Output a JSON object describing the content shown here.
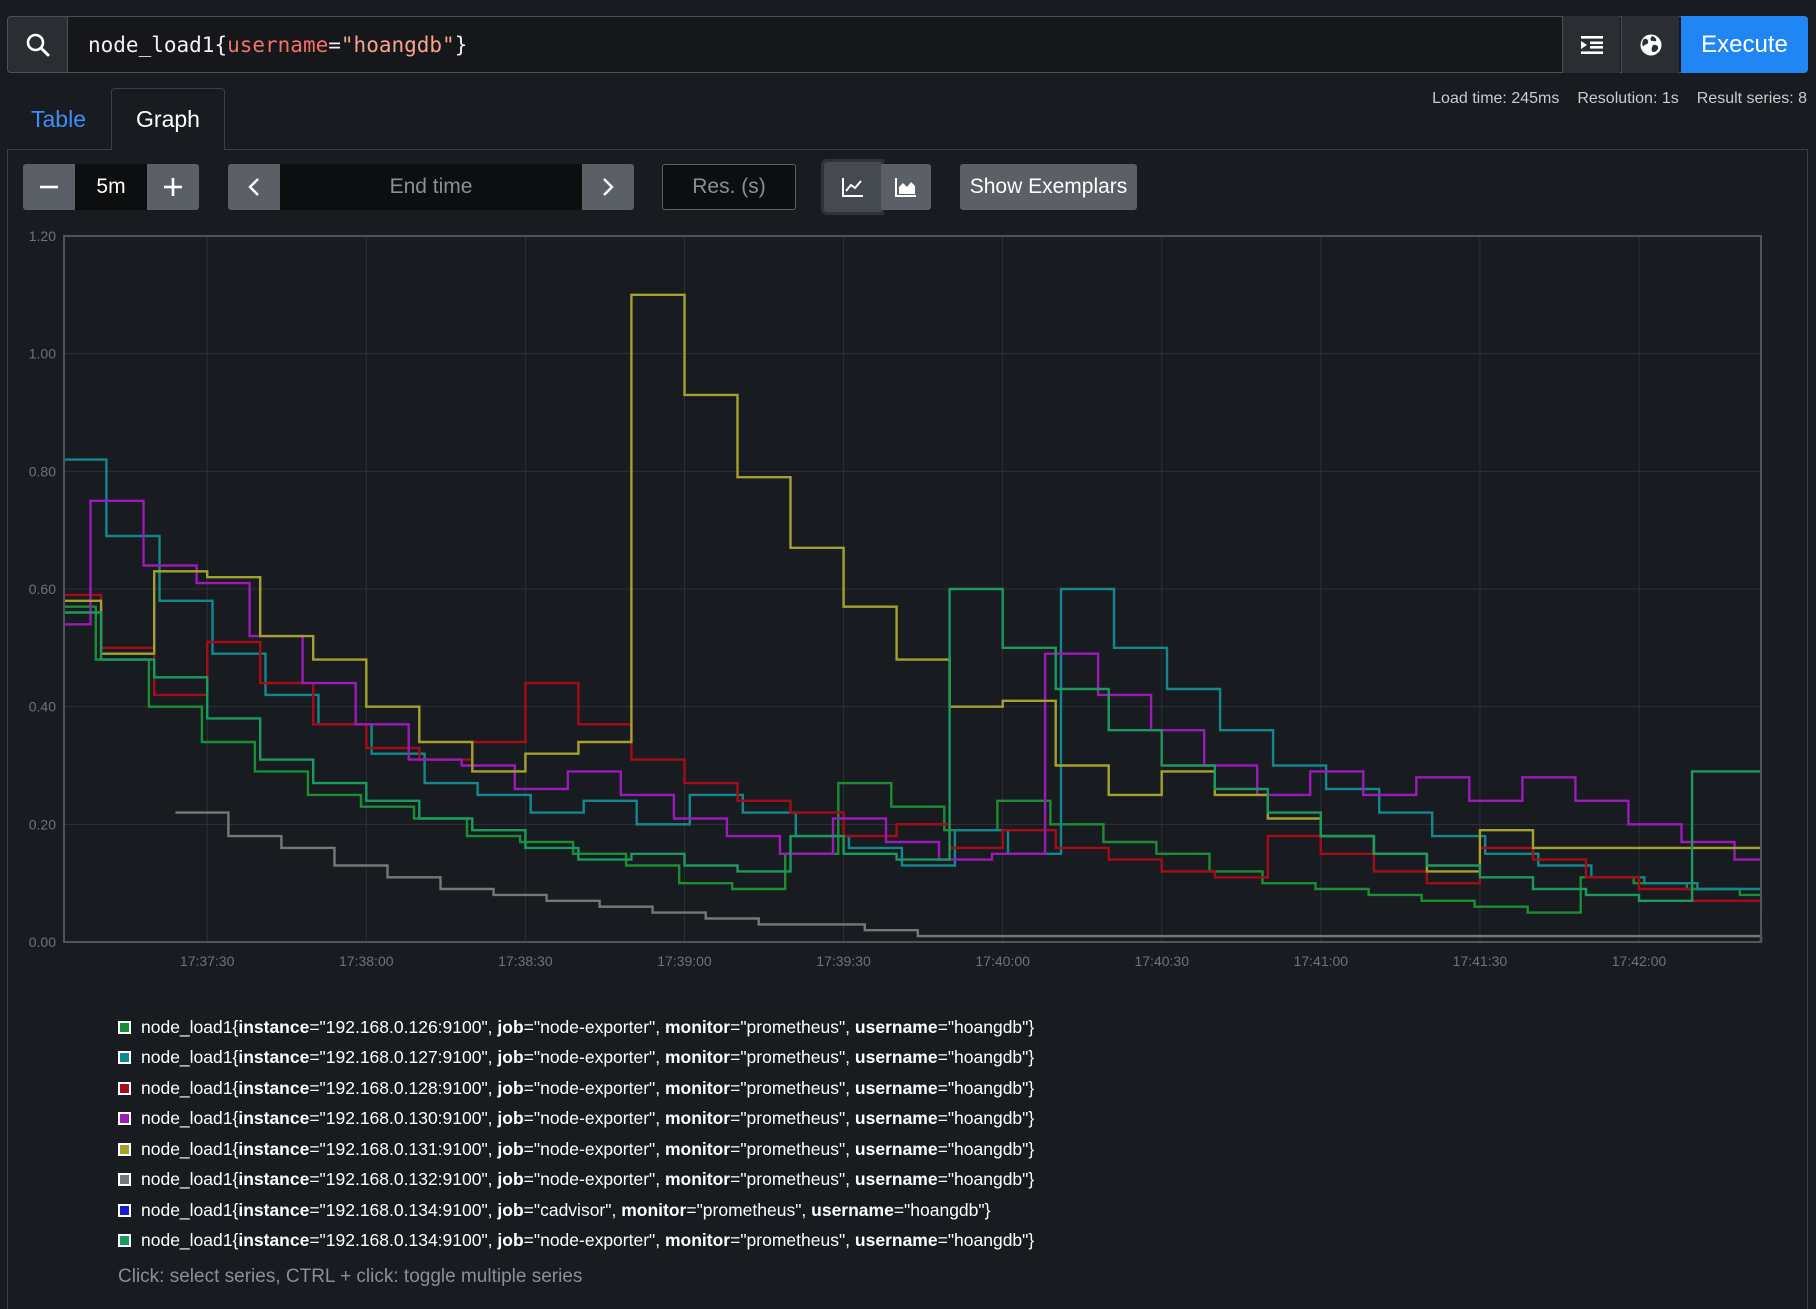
{
  "query": {
    "metric": "node_load1",
    "open_brace": "{",
    "label_key": "username",
    "equals": "=",
    "label_value": "\"hoangdb\"",
    "close_brace": "}",
    "execute_label": "Execute"
  },
  "tabs": {
    "table": "Table",
    "graph": "Graph"
  },
  "stats": {
    "load_time": "Load time: 245ms",
    "resolution": "Resolution: 1s",
    "result_series": "Result series: 8"
  },
  "toolbar": {
    "range_value": "5m",
    "end_time_placeholder": "End time",
    "res_placeholder": "Res. (s)",
    "exemplars_label": "Show Exemplars"
  },
  "icons": {
    "search": "search-icon",
    "format": "format-indent-icon",
    "explorer": "globe-icon",
    "minus": "minus-icon",
    "plus": "plus-icon",
    "prev": "chevron-left-icon",
    "next": "chevron-right-icon",
    "line": "line-chart-icon",
    "stacked": "area-chart-icon"
  },
  "colors": {
    "accent": "#1f86f4",
    "background": "#181b1f"
  },
  "chart_data": {
    "type": "line",
    "ylim": [
      0,
      1.2
    ],
    "yticks": [
      "0.00",
      "0.20",
      "0.40",
      "0.60",
      "0.80",
      "1.00",
      "1.20"
    ],
    "xlim": [
      "17:37:03",
      "17:42:23"
    ],
    "xticks": [
      "17:37:30",
      "17:38:00",
      "17:38:30",
      "17:39:00",
      "17:39:30",
      "17:40:00",
      "17:40:30",
      "17:41:00",
      "17:41:30",
      "17:42:00"
    ],
    "grid": true,
    "series": [
      {
        "name": "node_load1{instance=\"192.168.0.126:9100\", job=\"node-exporter\", monitor=\"prometheus\", username=\"hoangdb\"}",
        "instance": "\"192.168.0.126:9100\"",
        "job": "\"node-exporter\"",
        "color": "#1c8d36",
        "points": [
          [
            "17:37:03",
            0.57
          ],
          [
            "17:37:09",
            0.48
          ],
          [
            "17:37:19",
            0.4
          ],
          [
            "17:37:29",
            0.34
          ],
          [
            "17:37:39",
            0.29
          ],
          [
            "17:37:49",
            0.25
          ],
          [
            "17:37:59",
            0.23
          ],
          [
            "17:38:09",
            0.21
          ],
          [
            "17:38:19",
            0.18
          ],
          [
            "17:38:29",
            0.17
          ],
          [
            "17:38:39",
            0.15
          ],
          [
            "17:38:49",
            0.13
          ],
          [
            "17:38:59",
            0.1
          ],
          [
            "17:39:09",
            0.09
          ],
          [
            "17:39:19",
            0.15
          ],
          [
            "17:39:29",
            0.27
          ],
          [
            "17:39:39",
            0.23
          ],
          [
            "17:39:49",
            0.19
          ],
          [
            "17:39:59",
            0.24
          ],
          [
            "17:40:09",
            0.2
          ],
          [
            "17:40:19",
            0.17
          ],
          [
            "17:40:29",
            0.15
          ],
          [
            "17:40:39",
            0.12
          ],
          [
            "17:40:49",
            0.1
          ],
          [
            "17:40:59",
            0.09
          ],
          [
            "17:41:09",
            0.08
          ],
          [
            "17:41:19",
            0.07
          ],
          [
            "17:41:29",
            0.06
          ],
          [
            "17:41:39",
            0.05
          ],
          [
            "17:41:49",
            0.11
          ],
          [
            "17:41:59",
            0.1
          ],
          [
            "17:42:09",
            0.09
          ],
          [
            "17:42:19",
            0.08
          ],
          [
            "17:42:23",
            0.08
          ]
        ]
      },
      {
        "name": "node_load1{instance=\"192.168.0.127:9100\", job=\"node-exporter\", monitor=\"prometheus\", username=\"hoangdb\"}",
        "instance": "\"192.168.0.127:9100\"",
        "job": "\"node-exporter\"",
        "color": "#13888c",
        "points": [
          [
            "17:37:03",
            0.82
          ],
          [
            "17:37:11",
            0.69
          ],
          [
            "17:37:21",
            0.58
          ],
          [
            "17:37:31",
            0.49
          ],
          [
            "17:37:41",
            0.42
          ],
          [
            "17:37:51",
            0.37
          ],
          [
            "17:38:01",
            0.32
          ],
          [
            "17:38:11",
            0.27
          ],
          [
            "17:38:21",
            0.25
          ],
          [
            "17:38:31",
            0.22
          ],
          [
            "17:38:41",
            0.24
          ],
          [
            "17:38:51",
            0.2
          ],
          [
            "17:39:01",
            0.25
          ],
          [
            "17:39:11",
            0.22
          ],
          [
            "17:39:21",
            0.18
          ],
          [
            "17:39:31",
            0.16
          ],
          [
            "17:39:41",
            0.13
          ],
          [
            "17:39:51",
            0.19
          ],
          [
            "17:40:01",
            0.15
          ],
          [
            "17:40:11",
            0.6
          ],
          [
            "17:40:21",
            0.5
          ],
          [
            "17:40:31",
            0.43
          ],
          [
            "17:40:41",
            0.36
          ],
          [
            "17:40:51",
            0.3
          ],
          [
            "17:41:01",
            0.26
          ],
          [
            "17:41:11",
            0.22
          ],
          [
            "17:41:21",
            0.18
          ],
          [
            "17:41:31",
            0.15
          ],
          [
            "17:41:41",
            0.13
          ],
          [
            "17:41:51",
            0.11
          ],
          [
            "17:42:01",
            0.1
          ],
          [
            "17:42:11",
            0.09
          ],
          [
            "17:42:23",
            0.09
          ]
        ]
      },
      {
        "name": "node_load1{instance=\"192.168.0.128:9100\", job=\"node-exporter\", monitor=\"prometheus\", username=\"hoangdb\"}",
        "instance": "\"192.168.0.128:9100\"",
        "job": "\"node-exporter\"",
        "color": "#a30c18",
        "points": [
          [
            "17:37:03",
            0.59
          ],
          [
            "17:37:10",
            0.5
          ],
          [
            "17:37:20",
            0.42
          ],
          [
            "17:37:30",
            0.51
          ],
          [
            "17:37:40",
            0.44
          ],
          [
            "17:37:50",
            0.37
          ],
          [
            "17:38:00",
            0.33
          ],
          [
            "17:38:10",
            0.31
          ],
          [
            "17:38:20",
            0.34
          ],
          [
            "17:38:30",
            0.44
          ],
          [
            "17:38:40",
            0.37
          ],
          [
            "17:38:50",
            0.31
          ],
          [
            "17:39:00",
            0.27
          ],
          [
            "17:39:10",
            0.24
          ],
          [
            "17:39:20",
            0.22
          ],
          [
            "17:39:30",
            0.18
          ],
          [
            "17:39:40",
            0.2
          ],
          [
            "17:39:50",
            0.16
          ],
          [
            "17:40:00",
            0.19
          ],
          [
            "17:40:10",
            0.16
          ],
          [
            "17:40:20",
            0.14
          ],
          [
            "17:40:30",
            0.12
          ],
          [
            "17:40:40",
            0.11
          ],
          [
            "17:40:50",
            0.18
          ],
          [
            "17:41:00",
            0.15
          ],
          [
            "17:41:10",
            0.12
          ],
          [
            "17:41:20",
            0.1
          ],
          [
            "17:41:30",
            0.16
          ],
          [
            "17:41:40",
            0.14
          ],
          [
            "17:41:50",
            0.11
          ],
          [
            "17:42:00",
            0.09
          ],
          [
            "17:42:10",
            0.07
          ],
          [
            "17:42:23",
            0.06
          ]
        ]
      },
      {
        "name": "node_load1{instance=\"192.168.0.130:9100\", job=\"node-exporter\", monitor=\"prometheus\", username=\"hoangdb\"}",
        "instance": "\"192.168.0.130:9100\"",
        "job": "\"node-exporter\"",
        "color": "#9b1bb8",
        "points": [
          [
            "17:37:03",
            0.54
          ],
          [
            "17:37:08",
            0.75
          ],
          [
            "17:37:18",
            0.64
          ],
          [
            "17:37:28",
            0.61
          ],
          [
            "17:37:38",
            0.52
          ],
          [
            "17:37:48",
            0.44
          ],
          [
            "17:37:58",
            0.37
          ],
          [
            "17:38:08",
            0.31
          ],
          [
            "17:38:18",
            0.3
          ],
          [
            "17:38:28",
            0.26
          ],
          [
            "17:38:38",
            0.29
          ],
          [
            "17:38:48",
            0.25
          ],
          [
            "17:38:58",
            0.21
          ],
          [
            "17:39:08",
            0.18
          ],
          [
            "17:39:18",
            0.15
          ],
          [
            "17:39:28",
            0.21
          ],
          [
            "17:39:38",
            0.17
          ],
          [
            "17:39:48",
            0.14
          ],
          [
            "17:39:58",
            0.15
          ],
          [
            "17:40:08",
            0.49
          ],
          [
            "17:40:18",
            0.42
          ],
          [
            "17:40:28",
            0.36
          ],
          [
            "17:40:38",
            0.3
          ],
          [
            "17:40:48",
            0.25
          ],
          [
            "17:40:58",
            0.29
          ],
          [
            "17:41:08",
            0.25
          ],
          [
            "17:41:18",
            0.28
          ],
          [
            "17:41:28",
            0.24
          ],
          [
            "17:41:38",
            0.28
          ],
          [
            "17:41:48",
            0.24
          ],
          [
            "17:41:58",
            0.2
          ],
          [
            "17:42:08",
            0.17
          ],
          [
            "17:42:18",
            0.14
          ],
          [
            "17:42:23",
            0.14
          ]
        ]
      },
      {
        "name": "node_load1{instance=\"192.168.0.131:9100\", job=\"node-exporter\", monitor=\"prometheus\", username=\"hoangdb\"}",
        "instance": "\"192.168.0.131:9100\"",
        "job": "\"node-exporter\"",
        "color": "#a4a12c",
        "points": [
          [
            "17:37:03",
            0.58
          ],
          [
            "17:37:10",
            0.49
          ],
          [
            "17:37:20",
            0.63
          ],
          [
            "17:37:30",
            0.62
          ],
          [
            "17:37:40",
            0.52
          ],
          [
            "17:37:50",
            0.48
          ],
          [
            "17:38:00",
            0.4
          ],
          [
            "17:38:10",
            0.34
          ],
          [
            "17:38:20",
            0.29
          ],
          [
            "17:38:30",
            0.32
          ],
          [
            "17:38:40",
            0.34
          ],
          [
            "17:38:50",
            1.1
          ],
          [
            "17:39:00",
            0.93
          ],
          [
            "17:39:10",
            0.79
          ],
          [
            "17:39:20",
            0.67
          ],
          [
            "17:39:30",
            0.57
          ],
          [
            "17:39:40",
            0.48
          ],
          [
            "17:39:50",
            0.4
          ],
          [
            "17:40:00",
            0.41
          ],
          [
            "17:40:10",
            0.3
          ],
          [
            "17:40:20",
            0.25
          ],
          [
            "17:40:30",
            0.29
          ],
          [
            "17:40:40",
            0.25
          ],
          [
            "17:40:50",
            0.21
          ],
          [
            "17:41:00",
            0.18
          ],
          [
            "17:41:10",
            0.15
          ],
          [
            "17:41:20",
            0.12
          ],
          [
            "17:41:30",
            0.19
          ],
          [
            "17:41:40",
            0.16
          ],
          [
            "17:42:23",
            0.16
          ]
        ]
      },
      {
        "name": "node_load1{instance=\"192.168.0.132:9100\", job=\"node-exporter\", monitor=\"prometheus\", username=\"hoangdb\"}",
        "instance": "\"192.168.0.132:9100\"",
        "job": "\"node-exporter\"",
        "color": "#777777",
        "points": [
          [
            "17:37:24",
            0.22
          ],
          [
            "17:37:34",
            0.18
          ],
          [
            "17:37:44",
            0.16
          ],
          [
            "17:37:54",
            0.13
          ],
          [
            "17:38:04",
            0.11
          ],
          [
            "17:38:14",
            0.09
          ],
          [
            "17:38:24",
            0.08
          ],
          [
            "17:38:34",
            0.07
          ],
          [
            "17:38:44",
            0.06
          ],
          [
            "17:38:54",
            0.05
          ],
          [
            "17:39:04",
            0.04
          ],
          [
            "17:39:14",
            0.03
          ],
          [
            "17:39:24",
            0.03
          ],
          [
            "17:39:34",
            0.02
          ],
          [
            "17:39:44",
            0.01
          ],
          [
            "17:42:23",
            0.0
          ]
        ]
      },
      {
        "name": "node_load1{instance=\"192.168.0.134:9100\", job=\"cadvisor\", monitor=\"prometheus\", username=\"hoangdb\"}",
        "instance": "\"192.168.0.134:9100\"",
        "job": "\"cadvisor\"",
        "color": "#1919d4",
        "points": []
      },
      {
        "name": "node_load1{instance=\"192.168.0.134:9100\", job=\"node-exporter\", monitor=\"prometheus\", username=\"hoangdb\"}",
        "instance": "\"192.168.0.134:9100\"",
        "job": "\"node-exporter\"",
        "color": "#1b9a5f",
        "points": [
          [
            "17:37:03",
            0.56
          ],
          [
            "17:37:10",
            0.48
          ],
          [
            "17:37:20",
            0.45
          ],
          [
            "17:37:30",
            0.38
          ],
          [
            "17:37:40",
            0.31
          ],
          [
            "17:37:50",
            0.27
          ],
          [
            "17:38:00",
            0.24
          ],
          [
            "17:38:10",
            0.21
          ],
          [
            "17:38:20",
            0.19
          ],
          [
            "17:38:30",
            0.16
          ],
          [
            "17:38:40",
            0.14
          ],
          [
            "17:38:50",
            0.15
          ],
          [
            "17:39:00",
            0.13
          ],
          [
            "17:39:10",
            0.12
          ],
          [
            "17:39:20",
            0.18
          ],
          [
            "17:39:30",
            0.15
          ],
          [
            "17:39:40",
            0.14
          ],
          [
            "17:39:50",
            0.6
          ],
          [
            "17:40:00",
            0.5
          ],
          [
            "17:40:10",
            0.43
          ],
          [
            "17:40:20",
            0.36
          ],
          [
            "17:40:30",
            0.3
          ],
          [
            "17:40:40",
            0.26
          ],
          [
            "17:40:50",
            0.22
          ],
          [
            "17:41:00",
            0.18
          ],
          [
            "17:41:10",
            0.15
          ],
          [
            "17:41:20",
            0.13
          ],
          [
            "17:41:30",
            0.11
          ],
          [
            "17:41:40",
            0.09
          ],
          [
            "17:41:50",
            0.08
          ],
          [
            "17:42:00",
            0.07
          ],
          [
            "17:42:10",
            0.29
          ],
          [
            "17:42:23",
            0.29
          ]
        ]
      }
    ]
  },
  "legend": {
    "metric": "node_load1",
    "open": "{",
    "close": "}",
    "k_instance": "instance",
    "k_job": "job",
    "k_monitor": "monitor",
    "k_username": "username",
    "eq": "=",
    "sep": ", ",
    "monitor_val": "\"prometheus\"",
    "username_val": "\"hoangdb\"",
    "hint": "Click: select series, CTRL + click: toggle multiple series"
  }
}
